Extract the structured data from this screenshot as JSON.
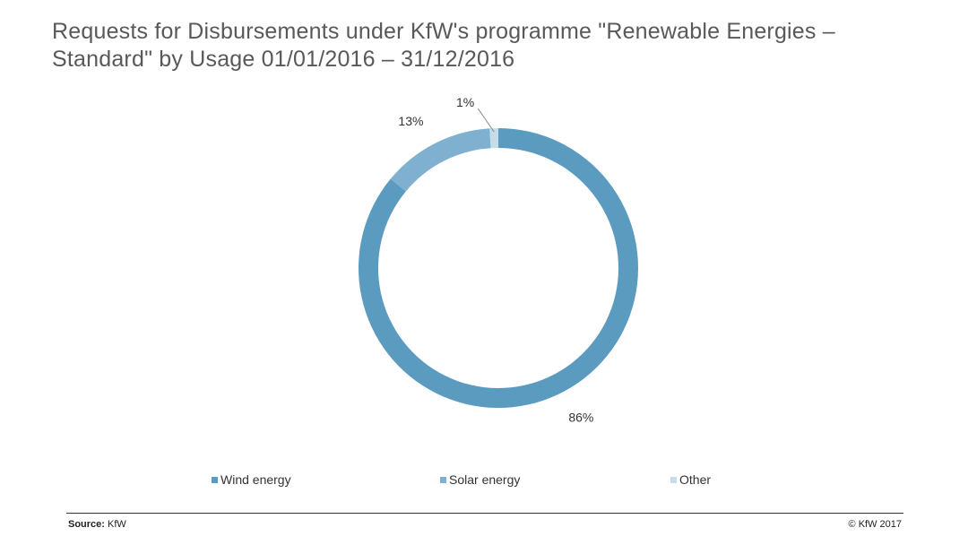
{
  "title": "Requests for Disbursements under KfW's programme \"Renewable Energies – Standard\" by Usage 01/01/2016 – 31/12/2016",
  "chart_data": {
    "type": "pie",
    "variant": "donut",
    "title": "Requests for Disbursements under KfW's programme \"Renewable Energies – Standard\" by Usage 01/01/2016 – 31/12/2016",
    "categories": [
      "Wind energy",
      "Solar energy",
      "Other"
    ],
    "values": [
      86,
      13,
      1
    ],
    "labels": [
      "86%",
      "13%",
      "1%"
    ],
    "colors": [
      "#5b9bbf",
      "#7fb0cf",
      "#c5dce9"
    ],
    "legend_position": "bottom"
  },
  "legend": {
    "items": [
      {
        "label": "Wind energy",
        "color": "#5b9bbf"
      },
      {
        "label": "Solar energy",
        "color": "#7fb0cf"
      },
      {
        "label": "Other",
        "color": "#c5dce9"
      }
    ]
  },
  "footer": {
    "source_label": "Source:",
    "source_value": "KfW",
    "copyright": "© KfW 2017"
  }
}
